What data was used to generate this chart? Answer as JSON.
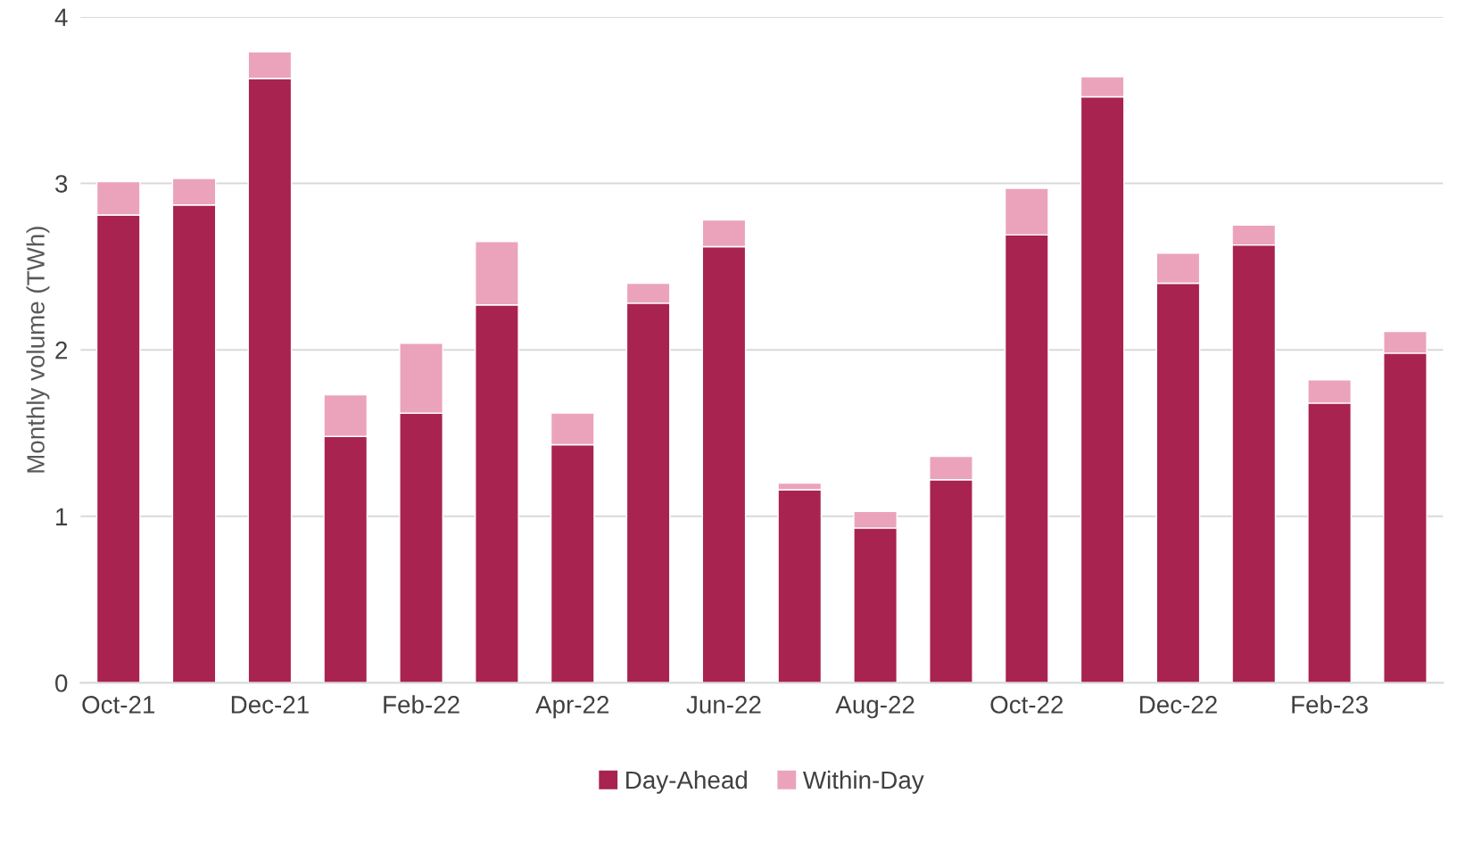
{
  "chart_data": {
    "type": "bar",
    "stacked": true,
    "ylabel": "Monthly volume (TWh)",
    "categories": [
      "Oct-21",
      null,
      "Dec-21",
      null,
      "Feb-22",
      null,
      "Apr-22",
      null,
      "Jun-22",
      null,
      "Aug-22",
      null,
      "Oct-22",
      null,
      "Dec-22",
      null,
      "Feb-23",
      null
    ],
    "series": [
      {
        "name": "Day-Ahead",
        "color": "#a8234f",
        "values": [
          2.81,
          2.87,
          3.63,
          1.48,
          1.62,
          2.27,
          1.43,
          2.28,
          2.62,
          1.16,
          0.93,
          1.22,
          2.69,
          3.52,
          2.4,
          2.63,
          1.68,
          1.98
        ]
      },
      {
        "name": "Within-Day",
        "color": "#eba3bc",
        "values": [
          0.2,
          0.16,
          0.16,
          0.25,
          0.42,
          0.38,
          0.19,
          0.12,
          0.16,
          0.04,
          0.1,
          0.14,
          0.28,
          0.12,
          0.18,
          0.12,
          0.14,
          0.13
        ]
      }
    ],
    "ylim": [
      0,
      4
    ],
    "yticks": [
      0,
      1,
      2,
      3,
      4
    ],
    "grid": "y",
    "legend": "bottom"
  }
}
